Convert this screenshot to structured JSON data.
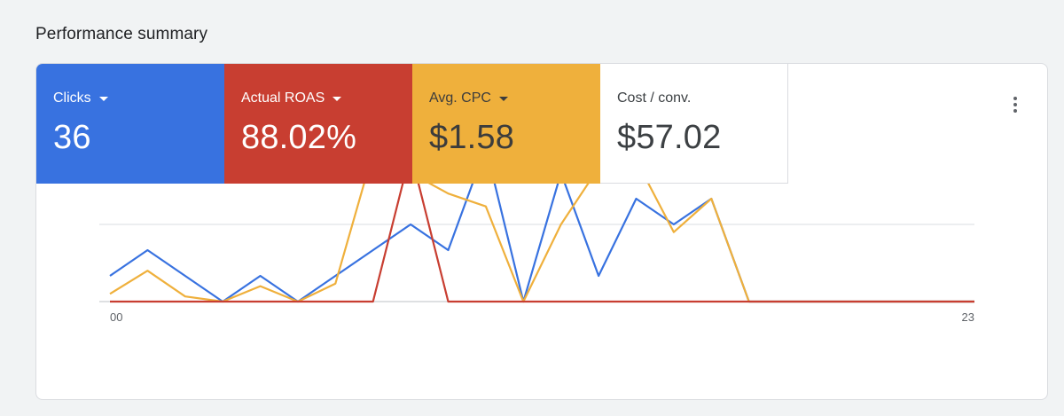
{
  "page": {
    "title": "Performance summary"
  },
  "tiles": [
    {
      "label": "Clicks",
      "value": "36",
      "color": "#3872e0",
      "text_color": "#ffffff",
      "dropdown": true
    },
    {
      "label": "Actual ROAS",
      "value": "88.02%",
      "color": "#c83e31",
      "text_color": "#ffffff",
      "dropdown": true
    },
    {
      "label": "Avg. CPC",
      "value": "$1.58",
      "color": "#efb03c",
      "text_color": "#3c3c3c",
      "dropdown": true
    },
    {
      "label": "Cost / conv.",
      "value": "$57.02",
      "color": "#ffffff",
      "text_color": "#3c4043",
      "dropdown": false
    }
  ],
  "menu": {
    "icon": "more-vert-icon"
  },
  "chart_data": {
    "type": "line",
    "x": [
      0,
      1,
      2,
      3,
      4,
      5,
      6,
      7,
      8,
      9,
      10,
      11,
      12,
      13,
      14,
      15,
      16,
      17,
      18,
      19,
      20,
      21,
      22,
      23
    ],
    "x_tick_labels": [
      "00",
      "23"
    ],
    "ylim": [
      0,
      6
    ],
    "grid": true,
    "series": [
      {
        "color": "#3872e0",
        "values": [
          1,
          2,
          1,
          0,
          1,
          0,
          1,
          2,
          3,
          2,
          6,
          0,
          5,
          1,
          4,
          3,
          4,
          0,
          0,
          0,
          0,
          0,
          0,
          0
        ]
      },
      {
        "color": "#efb03c",
        "values": [
          0.3,
          1.2,
          0.2,
          0,
          0.6,
          0,
          0.7,
          5.8,
          5,
          4.2,
          3.7,
          0,
          3,
          5.2,
          5.5,
          2.7,
          4,
          0,
          0,
          0,
          0,
          0,
          0,
          0
        ]
      },
      {
        "color": "#c83e31",
        "values": [
          0,
          0,
          0,
          0,
          0,
          0,
          0,
          0,
          5.8,
          0,
          0,
          0,
          0,
          0,
          0,
          0,
          0,
          0,
          0,
          0,
          0,
          0,
          0,
          0
        ]
      }
    ]
  }
}
